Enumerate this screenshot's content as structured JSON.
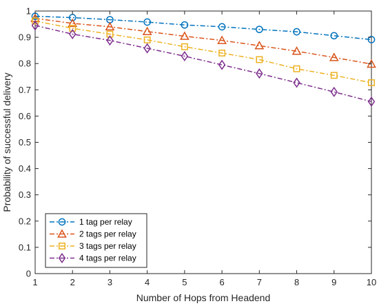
{
  "chart_data": {
    "type": "line",
    "title": "",
    "xlabel": "Number of Hops from Headend",
    "ylabel": "Probability of successful delivery",
    "xlim": [
      1,
      10
    ],
    "ylim": [
      0,
      1
    ],
    "x_ticks": [
      "1",
      "2",
      "3",
      "4",
      "5",
      "6",
      "7",
      "8",
      "9",
      "10"
    ],
    "y_ticks": [
      "0",
      "0.1",
      "0.2",
      "0.3",
      "0.4",
      "0.5",
      "0.6",
      "0.7",
      "0.8",
      "0.9",
      "1"
    ],
    "grid": false,
    "legend_position": "bottom-left",
    "x": [
      1,
      2,
      3,
      4,
      5,
      6,
      7,
      8,
      9,
      10
    ],
    "series": [
      {
        "name": "1 tag per relay",
        "color": "#0072BD",
        "marker": "circle",
        "line_style": "dash-dot",
        "values": [
          0.98,
          0.975,
          0.967,
          0.958,
          0.947,
          0.94,
          0.93,
          0.921,
          0.906,
          0.891
        ]
      },
      {
        "name": "2 tags per relay",
        "color": "#D95319",
        "marker": "triangle",
        "line_style": "dash-dot",
        "values": [
          0.972,
          0.953,
          0.94,
          0.922,
          0.904,
          0.888,
          0.868,
          0.847,
          0.823,
          0.798
        ]
      },
      {
        "name": "3 tags per relay",
        "color": "#EDB120",
        "marker": "square",
        "line_style": "dash-dot",
        "values": [
          0.962,
          0.934,
          0.912,
          0.89,
          0.864,
          0.84,
          0.815,
          0.78,
          0.755,
          0.727
        ]
      },
      {
        "name": "4 tags per relay",
        "color": "#7E2F8E",
        "marker": "diamond",
        "line_style": "dash-dot",
        "values": [
          0.945,
          0.912,
          0.888,
          0.858,
          0.828,
          0.795,
          0.762,
          0.727,
          0.692,
          0.655
        ]
      }
    ]
  }
}
